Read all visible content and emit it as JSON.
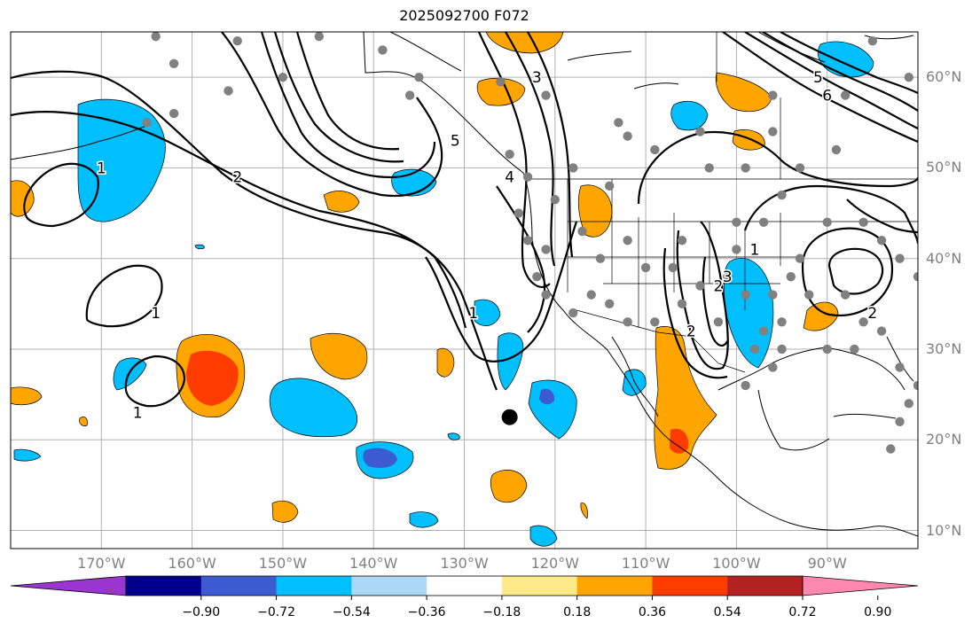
{
  "title": "2025092700 F072",
  "chart_data": {
    "type": "map",
    "projection": "equirectangular",
    "lon_range": [
      -180,
      -80
    ],
    "lat_range": [
      8,
      65
    ],
    "lat_ticks": [
      "10°N",
      "20°N",
      "30°N",
      "40°N",
      "50°N",
      "60°N"
    ],
    "lon_ticks": [
      "170°W",
      "160°W",
      "150°W",
      "140°W",
      "130°W",
      "120°W",
      "110°W",
      "100°W",
      "90°W"
    ],
    "colorbar": {
      "labels": [
        "−0.90",
        "−0.72",
        "−0.54",
        "−0.36",
        "−0.18",
        "0.18",
        "0.36",
        "0.54",
        "0.72",
        "0.90"
      ],
      "colors": [
        "#9a35d0",
        "#00008b",
        "#3c5bd0",
        "#00bfff",
        "#add8f5",
        "#ffffff",
        "#ffea8a",
        "#ffa500",
        "#ff3c00",
        "#b22222",
        "#ff88b0"
      ],
      "extend": "both"
    },
    "contour_labels": [
      {
        "text": "1",
        "lon": -170,
        "lat": 50
      },
      {
        "text": "2",
        "lon": -155,
        "lat": 49
      },
      {
        "text": "1",
        "lon": -164,
        "lat": 34
      },
      {
        "text": "1",
        "lon": -166,
        "lat": 23
      },
      {
        "text": "1",
        "lon": -129,
        "lat": 34
      },
      {
        "text": "2",
        "lon": -102,
        "lat": 37
      },
      {
        "text": "3",
        "lon": -101,
        "lat": 38
      },
      {
        "text": "1",
        "lon": -98,
        "lat": 41
      },
      {
        "text": "2",
        "lon": -105,
        "lat": 32
      },
      {
        "text": "3",
        "lon": -122,
        "lat": 60
      },
      {
        "text": "4",
        "lon": -125,
        "lat": 49
      },
      {
        "text": "5",
        "lon": -131,
        "lat": 53
      },
      {
        "text": "2",
        "lon": -85,
        "lat": 34
      },
      {
        "text": "5",
        "lon": -91,
        "lat": 60
      },
      {
        "text": "6",
        "lon": -90,
        "lat": 58
      }
    ],
    "storm_marker": {
      "lon": -125,
      "lat": 22.5
    }
  }
}
